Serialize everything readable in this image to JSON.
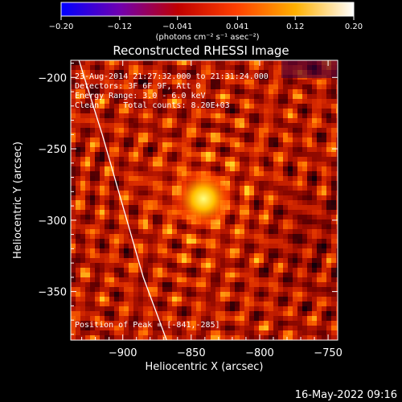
{
  "chart_data": {
    "type": "heatmap",
    "title": "Reconstructed RHESSI Image",
    "xlabel": "Heliocentric X (arcsec)",
    "ylabel": "Heliocentric Y (arcsec)",
    "xlim": [
      -938,
      -743
    ],
    "ylim": [
      -384,
      -188
    ],
    "xticks": [
      -900,
      -850,
      -800,
      -750
    ],
    "yticks": [
      -200,
      -250,
      -300,
      -350
    ],
    "xtick_labels": [
      "−900",
      "−850",
      "−800",
      "−750"
    ],
    "ytick_labels": [
      "−200",
      "−250",
      "−300",
      "−350"
    ],
    "colorbar": {
      "min": -0.2,
      "max": 0.2,
      "ticks": [
        -0.2,
        -0.12,
        -0.041,
        0.041,
        0.12,
        0.2
      ],
      "tick_labels": [
        "−0.20",
        "−0.12",
        "−0.041",
        "0.041",
        "0.12",
        "0.20"
      ],
      "unit_label": "(photons cm⁻² s⁻¹ asec⁻²)",
      "colormap": [
        "#0000ff",
        "#7000b0",
        "#c00000",
        "#ff4000",
        "#ffb000",
        "#ffffff"
      ]
    },
    "annotations": {
      "time_range": "23-Aug-2014 21:27:32.000 to 21:31:24.000",
      "detectors": "Detectors: 3F 6F 9F, Att 0",
      "energy": "Energy Range: 3.0 - 6.0 keV",
      "clean": "Clean     Total counts: 8.20E+03",
      "peak": "Position of Peak = [-841,-285]"
    },
    "peak": {
      "x": -841,
      "y": -285,
      "value": 0.2
    },
    "limb": {
      "points": [
        [
          -932,
          -188
        ],
        [
          -915,
          -240
        ],
        [
          -900,
          -290
        ],
        [
          -885,
          -340
        ],
        [
          -868,
          -384
        ]
      ]
    },
    "footer": "16-May-2022 09:16"
  }
}
